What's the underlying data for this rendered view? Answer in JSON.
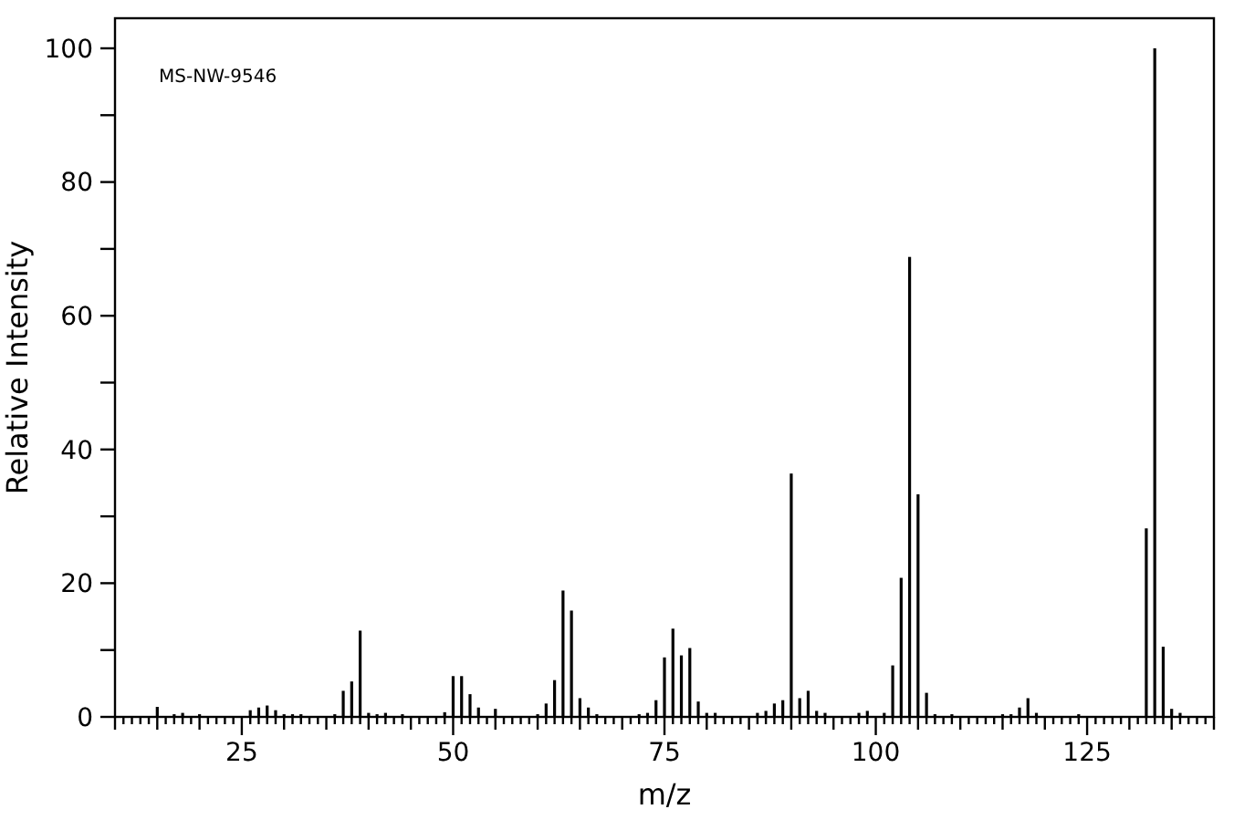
{
  "chart_data": {
    "type": "bar",
    "xlabel": "m/z",
    "ylabel": "Relative Intensity",
    "annotations": [
      "MS-NW-9546"
    ],
    "color": "#000000",
    "x": [
      15,
      17,
      18,
      20,
      26,
      27,
      28,
      29,
      30,
      31,
      32,
      36,
      37,
      38,
      39,
      40,
      41,
      42,
      44,
      49,
      50,
      51,
      52,
      53,
      55,
      60,
      61,
      62,
      63,
      64,
      65,
      66,
      67,
      72,
      73,
      74,
      75,
      76,
      77,
      78,
      79,
      80,
      81,
      86,
      87,
      88,
      89,
      90,
      91,
      92,
      93,
      94,
      98,
      99,
      101,
      102,
      103,
      104,
      105,
      106,
      107,
      109,
      115,
      116,
      117,
      118,
      119,
      124,
      132,
      133,
      134,
      135,
      136
    ],
    "values": [
      1.5,
      0.4,
      0.6,
      0.4,
      1.0,
      1.4,
      1.7,
      1.0,
      0.4,
      0.4,
      0.4,
      0.4,
      3.9,
      5.3,
      12.9,
      0.6,
      0.4,
      0.6,
      0.4,
      0.7,
      6.1,
      6.1,
      3.4,
      1.4,
      1.2,
      0.4,
      2.0,
      5.5,
      18.9,
      15.9,
      2.8,
      1.4,
      0.4,
      0.4,
      0.6,
      2.5,
      8.9,
      13.2,
      9.2,
      10.3,
      2.3,
      0.6,
      0.6,
      0.6,
      0.9,
      2.0,
      2.5,
      36.4,
      2.8,
      3.9,
      0.9,
      0.6,
      0.6,
      0.9,
      0.6,
      7.7,
      20.8,
      68.8,
      33.3,
      3.6,
      0.4,
      0.4,
      0.4,
      0.4,
      1.4,
      2.8,
      0.6,
      0.4,
      28.2,
      100,
      10.5,
      1.2,
      0.6
    ],
    "xlim": [
      10,
      140
    ],
    "ylim": [
      0,
      104.5
    ],
    "xticks": [
      {
        "value": 10,
        "label": null
      },
      {
        "value": 11,
        "label": null
      },
      {
        "value": 12,
        "label": null
      },
      {
        "value": 13,
        "label": null
      },
      {
        "value": 14,
        "label": null
      },
      {
        "value": 15,
        "label": null
      },
      {
        "value": 16,
        "label": null
      },
      {
        "value": 17,
        "label": null
      },
      {
        "value": 18,
        "label": null
      },
      {
        "value": 19,
        "label": null
      },
      {
        "value": 20,
        "label": null
      },
      {
        "value": 21,
        "label": null
      },
      {
        "value": 22,
        "label": null
      },
      {
        "value": 23,
        "label": null
      },
      {
        "value": 24,
        "label": null
      },
      25,
      {
        "value": 26,
        "label": null
      },
      {
        "value": 27,
        "label": null
      },
      {
        "value": 28,
        "label": null
      },
      {
        "value": 29,
        "label": null
      },
      {
        "value": 30,
        "label": null
      },
      {
        "value": 31,
        "label": null
      },
      {
        "value": 32,
        "label": null
      },
      {
        "value": 33,
        "label": null
      },
      {
        "value": 34,
        "label": null
      },
      {
        "value": 35,
        "label": null
      },
      {
        "value": 36,
        "label": null
      },
      {
        "value": 37,
        "label": null
      },
      {
        "value": 38,
        "label": null
      },
      {
        "value": 39,
        "label": null
      },
      {
        "value": 40,
        "label": null
      },
      {
        "value": 41,
        "label": null
      },
      {
        "value": 42,
        "label": null
      },
      {
        "value": 43,
        "label": null
      },
      {
        "value": 44,
        "label": null
      },
      {
        "value": 45,
        "label": null
      },
      {
        "value": 46,
        "label": null
      },
      {
        "value": 47,
        "label": null
      },
      {
        "value": 48,
        "label": null
      },
      {
        "value": 49,
        "label": null
      },
      50,
      {
        "value": 51,
        "label": null
      },
      {
        "value": 52,
        "label": null
      },
      {
        "value": 53,
        "label": null
      },
      {
        "value": 54,
        "label": null
      },
      {
        "value": 55,
        "label": null
      },
      {
        "value": 56,
        "label": null
      },
      {
        "value": 57,
        "label": null
      },
      {
        "value": 58,
        "label": null
      },
      {
        "value": 59,
        "label": null
      },
      {
        "value": 60,
        "label": null
      },
      {
        "value": 61,
        "label": null
      },
      {
        "value": 62,
        "label": null
      },
      {
        "value": 63,
        "label": null
      },
      {
        "value": 64,
        "label": null
      },
      {
        "value": 65,
        "label": null
      },
      {
        "value": 66,
        "label": null
      },
      {
        "value": 67,
        "label": null
      },
      {
        "value": 68,
        "label": null
      },
      {
        "value": 69,
        "label": null
      },
      {
        "value": 70,
        "label": null
      },
      {
        "value": 71,
        "label": null
      },
      {
        "value": 72,
        "label": null
      },
      {
        "value": 73,
        "label": null
      },
      {
        "value": 74,
        "label": null
      },
      75,
      {
        "value": 76,
        "label": null
      },
      {
        "value": 77,
        "label": null
      },
      {
        "value": 78,
        "label": null
      },
      {
        "value": 79,
        "label": null
      },
      {
        "value": 80,
        "label": null
      },
      {
        "value": 81,
        "label": null
      },
      {
        "value": 82,
        "label": null
      },
      {
        "value": 83,
        "label": null
      },
      {
        "value": 84,
        "label": null
      },
      {
        "value": 85,
        "label": null
      },
      {
        "value": 86,
        "label": null
      },
      {
        "value": 87,
        "label": null
      },
      {
        "value": 88,
        "label": null
      },
      {
        "value": 89,
        "label": null
      },
      {
        "value": 90,
        "label": null
      },
      {
        "value": 91,
        "label": null
      },
      {
        "value": 92,
        "label": null
      },
      {
        "value": 93,
        "label": null
      },
      {
        "value": 94,
        "label": null
      },
      {
        "value": 95,
        "label": null
      },
      {
        "value": 96,
        "label": null
      },
      {
        "value": 97,
        "label": null
      },
      {
        "value": 98,
        "label": null
      },
      {
        "value": 99,
        "label": null
      },
      100,
      {
        "value": 101,
        "label": null
      },
      {
        "value": 102,
        "label": null
      },
      {
        "value": 103,
        "label": null
      },
      {
        "value": 104,
        "label": null
      },
      {
        "value": 105,
        "label": null
      },
      {
        "value": 106,
        "label": null
      },
      {
        "value": 107,
        "label": null
      },
      {
        "value": 108,
        "label": null
      },
      {
        "value": 109,
        "label": null
      },
      {
        "value": 110,
        "label": null
      },
      {
        "value": 111,
        "label": null
      },
      {
        "value": 112,
        "label": null
      },
      {
        "value": 113,
        "label": null
      },
      {
        "value": 114,
        "label": null
      },
      {
        "value": 115,
        "label": null
      },
      {
        "value": 116,
        "label": null
      },
      {
        "value": 117,
        "label": null
      },
      {
        "value": 118,
        "label": null
      },
      {
        "value": 119,
        "label": null
      },
      {
        "value": 120,
        "label": null
      },
      {
        "value": 121,
        "label": null
      },
      {
        "value": 122,
        "label": null
      },
      {
        "value": 123,
        "label": null
      },
      {
        "value": 124,
        "label": null
      },
      125,
      {
        "value": 126,
        "label": null
      },
      {
        "value": 127,
        "label": null
      },
      {
        "value": 128,
        "label": null
      },
      {
        "value": 129,
        "label": null
      },
      {
        "value": 130,
        "label": null
      },
      {
        "value": 131,
        "label": null
      },
      {
        "value": 132,
        "label": null
      },
      {
        "value": 133,
        "label": null
      },
      {
        "value": 134,
        "label": null
      },
      {
        "value": 135,
        "label": null
      },
      {
        "value": 136,
        "label": null
      },
      {
        "value": 137,
        "label": null
      },
      {
        "value": 138,
        "label": null
      },
      {
        "value": 139,
        "label": null
      },
      {
        "value": 140,
        "label": null
      }
    ],
    "yticks": [
      0,
      {
        "value": 10,
        "label": null
      },
      20,
      {
        "value": 30,
        "label": null
      },
      40,
      {
        "value": 50,
        "label": null
      },
      60,
      {
        "value": 70,
        "label": null
      },
      80,
      {
        "value": 90,
        "label": null
      },
      100
    ],
    "grid": false
  }
}
